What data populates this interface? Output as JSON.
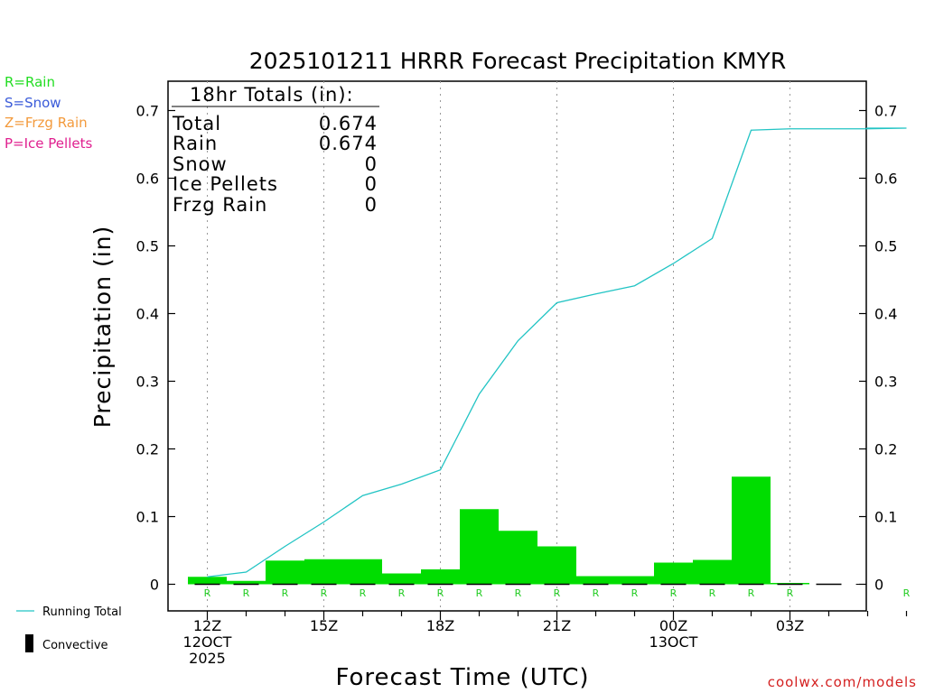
{
  "title": "2025101211 HRRR Forecast Precipitation KMYR",
  "legend_ptypes": [
    {
      "label": "R=Rain",
      "color": "#22dd22"
    },
    {
      "label": "S=Snow",
      "color": "#3a5bd9"
    },
    {
      "label": "Z=Frzg Rain",
      "color": "#f39a3c"
    },
    {
      "label": "P=Ice Pellets",
      "color": "#e0208f"
    }
  ],
  "legend_lines": {
    "running_total": "Running Total",
    "convective": "Convective"
  },
  "credit": "coolwx.com/models",
  "colors": {
    "precip_bar": "#00dd00",
    "running_total": "#22c4c4",
    "rain_marker": "#22cc22",
    "credit": "#d42020"
  },
  "totals": {
    "header": "18hr Totals (in):",
    "rows": [
      {
        "label": "Total",
        "value": "0.674"
      },
      {
        "label": "Rain",
        "value": "0.674"
      },
      {
        "label": "Snow",
        "value": "0"
      },
      {
        "label": "Ice Pellets",
        "value": "0"
      },
      {
        "label": "Frzg Rain",
        "value": "0"
      }
    ]
  },
  "chart_data": {
    "type": "bar",
    "xlabel": "Forecast Time (UTC)",
    "ylabel": "Precipitation (in)",
    "ylim": [
      -0.035,
      0.735
    ],
    "yticks": [
      "0",
      "0.1",
      "0.2",
      "0.3",
      "0.4",
      "0.5",
      "0.6",
      "0.7"
    ],
    "x_hours": [
      12,
      13,
      14,
      15,
      16,
      17,
      18,
      19,
      20,
      21,
      22,
      23,
      24,
      25,
      26,
      27,
      28,
      29,
      30
    ],
    "xticks": [
      {
        "hour": 12,
        "lines": [
          "12Z",
          "12OCT",
          "2025"
        ]
      },
      {
        "hour": 15,
        "lines": [
          "15Z"
        ]
      },
      {
        "hour": 18,
        "lines": [
          "18Z"
        ]
      },
      {
        "hour": 21,
        "lines": [
          "21Z"
        ]
      },
      {
        "hour": 24,
        "lines": [
          "00Z",
          "13OCT"
        ]
      },
      {
        "hour": 27,
        "lines": [
          "03Z"
        ]
      }
    ],
    "series": [
      {
        "name": "Hourly Precipitation",
        "kind": "bar",
        "values": [
          0.011,
          0.005,
          0.035,
          0.037,
          0.037,
          0.016,
          0.022,
          0.111,
          0.079,
          0.056,
          0.012,
          0.012,
          0.032,
          0.036,
          0.159,
          0.002,
          0.0,
          0.0,
          0.0
        ]
      },
      {
        "name": "Running Total",
        "kind": "line",
        "values": [
          0.011,
          0.018,
          0.056,
          0.092,
          0.131,
          0.148,
          0.169,
          0.281,
          0.36,
          0.416,
          0.429,
          0.441,
          0.474,
          0.511,
          0.671,
          0.673,
          0.673,
          0.673,
          0.674
        ]
      }
    ],
    "ptype_markers": [
      {
        "hour": 12,
        "code": "R"
      },
      {
        "hour": 13,
        "code": "R"
      },
      {
        "hour": 14,
        "code": "R"
      },
      {
        "hour": 15,
        "code": "R"
      },
      {
        "hour": 16,
        "code": "R"
      },
      {
        "hour": 17,
        "code": "R"
      },
      {
        "hour": 18,
        "code": "R"
      },
      {
        "hour": 19,
        "code": "R"
      },
      {
        "hour": 20,
        "code": "R"
      },
      {
        "hour": 21,
        "code": "R"
      },
      {
        "hour": 22,
        "code": "R"
      },
      {
        "hour": 23,
        "code": "R"
      },
      {
        "hour": 24,
        "code": "R"
      },
      {
        "hour": 25,
        "code": "R"
      },
      {
        "hour": 26,
        "code": "R"
      },
      {
        "hour": 27,
        "code": "R"
      },
      {
        "hour": 30,
        "code": "R"
      }
    ]
  }
}
